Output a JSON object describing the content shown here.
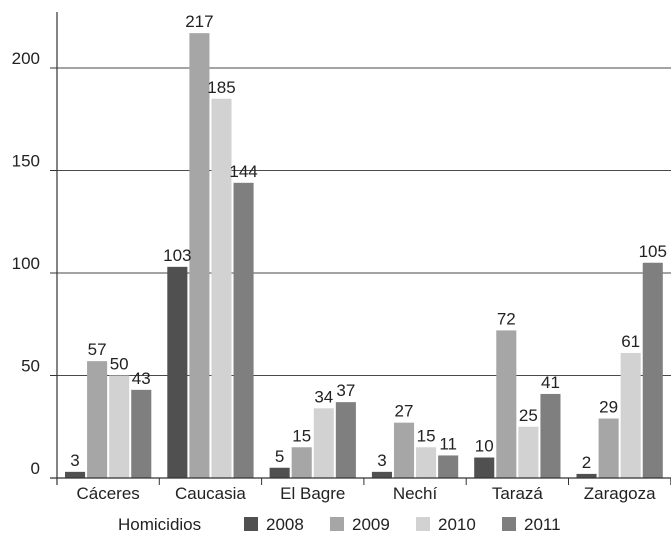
{
  "chart_data": {
    "type": "bar",
    "title": "",
    "xlabel": "",
    "ylabel": "",
    "ylim": [
      0,
      217
    ],
    "yticks": [
      0,
      50,
      100,
      150,
      200
    ],
    "grid": true,
    "legend_title": "Homicidios",
    "legend_position": "bottom",
    "categories": [
      "Cáceres",
      "Caucasia",
      "El Bagre",
      "Nechí",
      "Tarazá",
      "Zaragoza"
    ],
    "series": [
      {
        "name": "2008",
        "color": "#505050",
        "values": [
          3,
          103,
          5,
          3,
          10,
          2
        ]
      },
      {
        "name": "2009",
        "color": "#a6a6a6",
        "values": [
          57,
          217,
          15,
          27,
          72,
          29
        ]
      },
      {
        "name": "2010",
        "color": "#d2d2d2",
        "values": [
          50,
          185,
          34,
          15,
          25,
          61
        ]
      },
      {
        "name": "2011",
        "color": "#7f7f7f",
        "values": [
          43,
          144,
          37,
          11,
          41,
          105
        ]
      }
    ]
  }
}
